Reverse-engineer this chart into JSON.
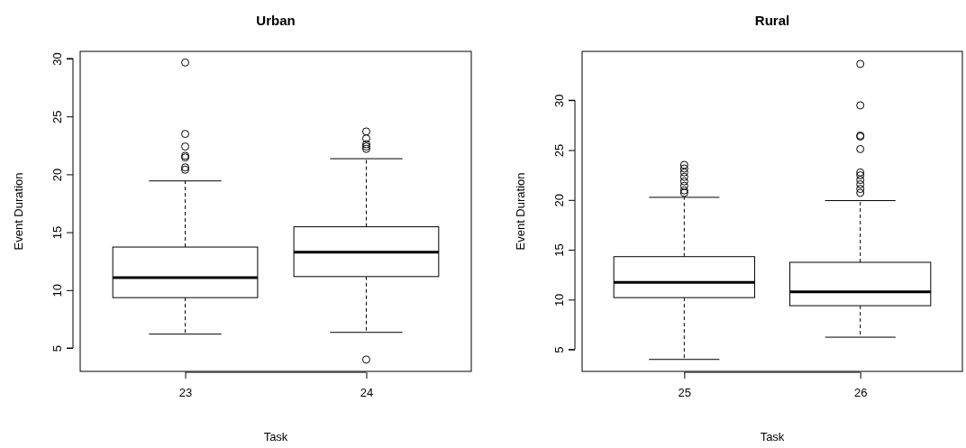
{
  "chart_data": [
    {
      "type": "box",
      "title": "Urban",
      "xlabel": "Task",
      "ylabel": "Event Duration",
      "categories": [
        "23",
        "24"
      ],
      "ylim": [
        2.98,
        30.62
      ],
      "yticks": [
        5,
        10,
        15,
        20,
        25,
        30
      ],
      "boxes": [
        {
          "low": 6.2,
          "q1": 9.35,
          "median": 11.07,
          "q3": 13.72,
          "high": 19.43,
          "outliers": [
            29.66,
            23.49,
            22.4,
            21.6,
            21.46,
            20.6,
            20.4
          ]
        },
        {
          "low": 6.35,
          "q1": 11.17,
          "median": 13.28,
          "q3": 15.47,
          "high": 21.35,
          "outliers": [
            4.0,
            23.7,
            23.1,
            22.6,
            22.4,
            22.2
          ]
        }
      ]
    },
    {
      "type": "box",
      "title": "Rural",
      "xlabel": "Task",
      "ylabel": "Event Duration",
      "categories": [
        "25",
        "26"
      ],
      "ylim": [
        2.8,
        34.9
      ],
      "yticks": [
        5,
        10,
        15,
        20,
        25,
        30
      ],
      "boxes": [
        {
          "low": 4.0,
          "q1": 10.2,
          "median": 11.73,
          "q3": 14.31,
          "high": 20.26,
          "outliers": [
            23.51,
            23.15,
            22.76,
            22.31,
            21.86,
            21.41,
            20.96,
            20.71
          ]
        },
        {
          "low": 6.23,
          "q1": 9.39,
          "median": 10.77,
          "q3": 13.74,
          "high": 19.93,
          "outliers": [
            33.64,
            29.49,
            26.45,
            26.36,
            25.1,
            22.76,
            22.46,
            22.0,
            21.56,
            21.1,
            20.71
          ]
        }
      ]
    }
  ]
}
